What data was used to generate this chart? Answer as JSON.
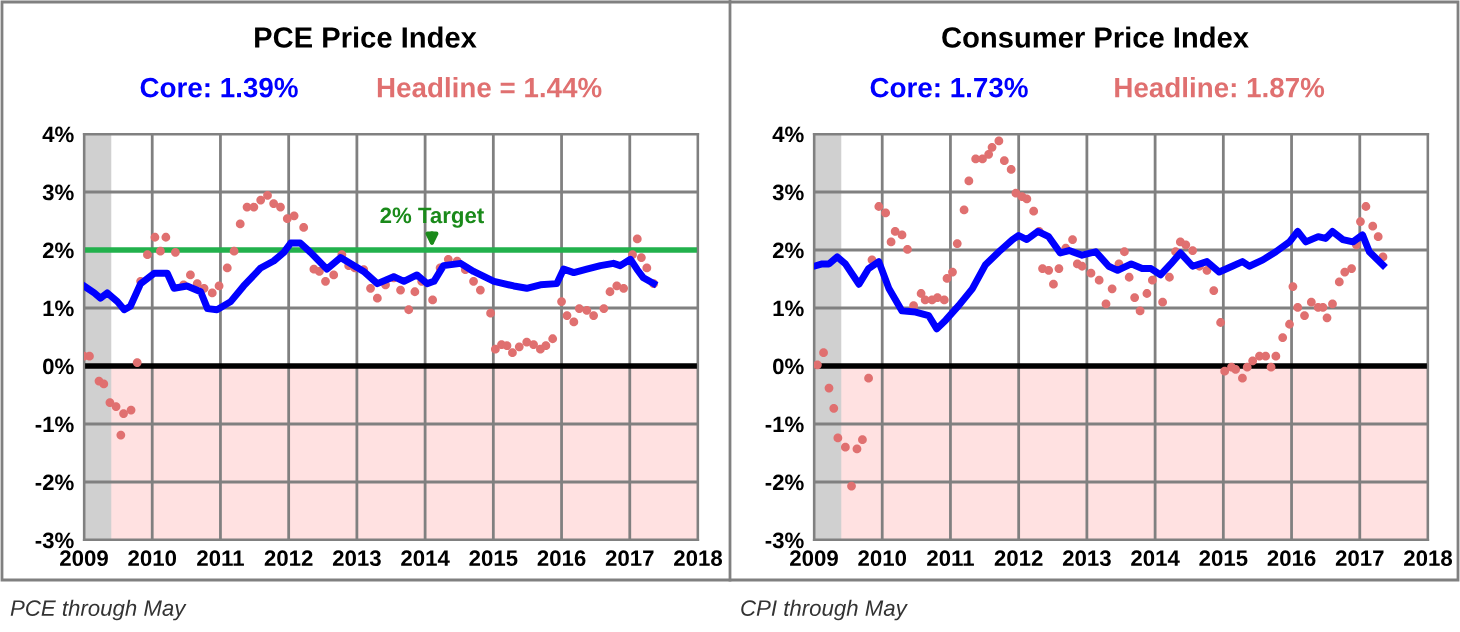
{
  "chart_data": [
    {
      "type": "line",
      "title": "PCE Price Index",
      "xlim": [
        2009,
        2018
      ],
      "ylim": [
        -3,
        4
      ],
      "xticks": [
        2009,
        2010,
        2011,
        2012,
        2013,
        2014,
        2015,
        2016,
        2017,
        2018
      ],
      "yticks": [
        {
          "value": -3,
          "label": "-3%"
        },
        {
          "value": -2,
          "label": "-2%"
        },
        {
          "value": -1,
          "label": "-1%"
        },
        {
          "value": 0,
          "label": "0%"
        },
        {
          "value": 1,
          "label": "1%"
        },
        {
          "value": 2,
          "label": "2%"
        },
        {
          "value": 3,
          "label": "3%"
        },
        {
          "value": 4,
          "label": "4%"
        }
      ],
      "grid": true,
      "series": [
        {
          "name": "Headline = 1.44%",
          "type": "scatter",
          "color": "#e07070",
          "x": [
            2009.0,
            2009.08,
            2009.22,
            2009.29,
            2009.38,
            2009.47,
            2009.54,
            2009.58,
            2009.69,
            2009.78,
            2009.83,
            2009.93,
            2010.04,
            2010.12,
            2010.2,
            2010.34,
            2010.46,
            2010.56,
            2010.66,
            2010.76,
            2010.88,
            2010.98,
            2011.1,
            2011.2,
            2011.29,
            2011.39,
            2011.49,
            2011.59,
            2011.69,
            2011.78,
            2011.88,
            2011.98,
            2012.08,
            2012.22,
            2012.37,
            2012.45,
            2012.54,
            2012.66,
            2012.78,
            2012.88,
            2012.97,
            2013.1,
            2013.2,
            2013.3,
            2013.42,
            2013.54,
            2013.64,
            2013.76,
            2013.85,
            2013.95,
            2014.11,
            2014.22,
            2014.34,
            2014.47,
            2014.59,
            2014.71,
            2014.81,
            2014.96,
            2015.03,
            2015.12,
            2015.2,
            2015.28,
            2015.38,
            2015.49,
            2015.59,
            2015.69,
            2015.77,
            2015.87,
            2016.0,
            2016.08,
            2016.18,
            2016.26,
            2016.37,
            2016.47,
            2016.62,
            2016.71,
            2016.81,
            2016.91,
            2017.04,
            2017.11,
            2017.17,
            2017.25,
            2017.35
          ],
          "values": [
            0.17,
            0.17,
            -0.26,
            -0.31,
            -0.63,
            -0.7,
            -1.19,
            -0.82,
            -0.76,
            0.06,
            1.46,
            1.92,
            2.22,
            1.98,
            2.22,
            1.96,
            1.4,
            1.57,
            1.42,
            1.34,
            1.26,
            1.38,
            1.69,
            1.98,
            2.45,
            2.74,
            2.74,
            2.86,
            2.94,
            2.8,
            2.74,
            2.54,
            2.59,
            2.39,
            1.67,
            1.63,
            1.46,
            1.57,
            1.92,
            1.73,
            1.69,
            1.66,
            1.34,
            1.17,
            1.4,
            1.52,
            1.31,
            0.97,
            1.28,
            1.46,
            1.14,
            1.69,
            1.84,
            1.81,
            1.66,
            1.46,
            1.31,
            0.91,
            0.29,
            0.37,
            0.35,
            0.23,
            0.33,
            0.41,
            0.37,
            0.29,
            0.35,
            0.47,
            1.11,
            0.87,
            0.76,
            0.99,
            0.96,
            0.87,
            0.99,
            1.28,
            1.38,
            1.34,
            1.92,
            2.19,
            1.87,
            1.69,
            1.42
          ]
        },
        {
          "name": "Core: 1.39%",
          "color": "#0000ff",
          "x": [
            2009.0,
            2009.15,
            2009.24,
            2009.34,
            2009.49,
            2009.59,
            2009.68,
            2009.83,
            2010.03,
            2010.22,
            2010.32,
            2010.51,
            2010.71,
            2010.81,
            2010.95,
            2011.15,
            2011.34,
            2011.59,
            2011.78,
            2011.93,
            2012.03,
            2012.17,
            2012.32,
            2012.56,
            2012.76,
            2012.96,
            2013.1,
            2013.3,
            2013.54,
            2013.69,
            2013.88,
            2014.03,
            2014.13,
            2014.27,
            2014.52,
            2014.71,
            2015.01,
            2015.3,
            2015.49,
            2015.69,
            2015.93,
            2016.03,
            2016.18,
            2016.37,
            2016.57,
            2016.76,
            2016.86,
            2017.01,
            2017.11,
            2017.2,
            2017.35
          ],
          "values": [
            1.38,
            1.26,
            1.17,
            1.26,
            1.11,
            0.97,
            1.03,
            1.42,
            1.6,
            1.6,
            1.34,
            1.38,
            1.28,
            0.99,
            0.97,
            1.11,
            1.38,
            1.69,
            1.81,
            1.96,
            2.12,
            2.12,
            1.96,
            1.67,
            1.87,
            1.73,
            1.63,
            1.42,
            1.54,
            1.46,
            1.57,
            1.42,
            1.46,
            1.73,
            1.77,
            1.63,
            1.46,
            1.38,
            1.34,
            1.4,
            1.42,
            1.67,
            1.61,
            1.67,
            1.73,
            1.77,
            1.73,
            1.84,
            1.66,
            1.52,
            1.42
          ]
        }
      ],
      "bands": [
        {
          "axis": "x",
          "from": 2009.0,
          "to": 2009.4,
          "color": "#d0d0d0"
        },
        {
          "axis": "y",
          "from": -3,
          "to": 0,
          "color": "#ffe1e1"
        }
      ],
      "ref_lines": [
        {
          "axis": "y",
          "value": 0,
          "color": "#000000"
        },
        {
          "axis": "y",
          "value": 2,
          "color": "#22b14c"
        }
      ],
      "annotations": [
        {
          "text": "2% Target",
          "x": 2014.1,
          "y": 2
        },
        "PCE through May"
      ]
    },
    {
      "type": "line",
      "title": "Consumer Price Index",
      "xlim": [
        2009,
        2018
      ],
      "ylim": [
        -3,
        4
      ],
      "xticks": [
        2009,
        2010,
        2011,
        2012,
        2013,
        2014,
        2015,
        2016,
        2017,
        2018
      ],
      "yticks": [
        {
          "value": -3,
          "label": "-3%"
        },
        {
          "value": -2,
          "label": "-2%"
        },
        {
          "value": -1,
          "label": "-1%"
        },
        {
          "value": 0,
          "label": "0%"
        },
        {
          "value": 1,
          "label": "1%"
        },
        {
          "value": 2,
          "label": "2%"
        },
        {
          "value": 3,
          "label": "3%"
        },
        {
          "value": 4,
          "label": "4%"
        }
      ],
      "grid": true,
      "series": [
        {
          "name": "Headline: 1.87%",
          "type": "scatter",
          "color": "#e07070",
          "x": [
            2009.05,
            2009.14,
            2009.22,
            2009.29,
            2009.35,
            2009.46,
            2009.55,
            2009.63,
            2009.71,
            2009.8,
            2009.85,
            2009.95,
            2010.05,
            2010.13,
            2010.19,
            2010.29,
            2010.37,
            2010.46,
            2010.57,
            2010.63,
            2010.73,
            2010.81,
            2010.91,
            2010.95,
            2011.03,
            2011.1,
            2011.2,
            2011.27,
            2011.37,
            2011.47,
            2011.56,
            2011.61,
            2011.71,
            2011.79,
            2011.89,
            2011.96,
            2012.05,
            2012.12,
            2012.22,
            2012.3,
            2012.35,
            2012.44,
            2012.51,
            2012.59,
            2012.69,
            2012.79,
            2012.86,
            2012.93,
            2013.06,
            2013.18,
            2013.28,
            2013.37,
            2013.47,
            2013.55,
            2013.62,
            2013.7,
            2013.78,
            2013.88,
            2013.96,
            2014.11,
            2014.21,
            2014.3,
            2014.37,
            2014.45,
            2014.55,
            2014.65,
            2014.76,
            2014.86,
            2014.96,
            2015.02,
            2015.12,
            2015.18,
            2015.28,
            2015.35,
            2015.43,
            2015.53,
            2015.62,
            2015.7,
            2015.77,
            2015.87,
            2015.97,
            2016.02,
            2016.09,
            2016.19,
            2016.29,
            2016.39,
            2016.46,
            2016.52,
            2016.6,
            2016.7,
            2016.78,
            2016.88,
            2016.95,
            2017.01,
            2017.09,
            2017.19,
            2017.27,
            2017.34
          ],
          "values": [
            0.02,
            0.23,
            -0.38,
            -0.73,
            -1.24,
            -1.4,
            -2.07,
            -1.43,
            -1.27,
            -0.21,
            1.83,
            2.75,
            2.64,
            2.14,
            2.32,
            2.26,
            2.01,
            1.04,
            1.25,
            1.14,
            1.14,
            1.18,
            1.14,
            1.51,
            1.62,
            2.11,
            2.69,
            3.19,
            3.57,
            3.57,
            3.65,
            3.77,
            3.88,
            3.54,
            3.39,
            2.98,
            2.92,
            2.88,
            2.67,
            2.32,
            1.68,
            1.65,
            1.41,
            1.68,
            2.03,
            2.18,
            1.76,
            1.72,
            1.6,
            1.48,
            1.07,
            1.33,
            1.76,
            1.97,
            1.53,
            1.18,
            0.95,
            1.25,
            1.48,
            1.1,
            1.53,
            1.97,
            2.14,
            2.09,
            1.99,
            1.72,
            1.65,
            1.3,
            0.75,
            -0.09,
            -0.02,
            -0.06,
            -0.21,
            -0.02,
            0.09,
            0.17,
            0.17,
            -0.02,
            0.17,
            0.49,
            0.72,
            1.37,
            1.01,
            0.87,
            1.1,
            1.01,
            1.01,
            0.83,
            1.07,
            1.45,
            1.62,
            1.68,
            2.09,
            2.49,
            2.75,
            2.41,
            2.23,
            1.88
          ]
        },
        {
          "name": "Core: 1.73%",
          "color": "#0000ff",
          "x": [
            2009.0,
            2009.12,
            2009.22,
            2009.34,
            2009.46,
            2009.66,
            2009.8,
            2009.95,
            2010.1,
            2010.29,
            2010.49,
            2010.68,
            2010.8,
            2010.93,
            2011.12,
            2011.32,
            2011.51,
            2011.71,
            2011.91,
            2012.0,
            2012.12,
            2012.28,
            2012.44,
            2012.61,
            2012.74,
            2012.93,
            2013.13,
            2013.32,
            2013.45,
            2013.65,
            2013.81,
            2013.94,
            2014.08,
            2014.23,
            2014.37,
            2014.55,
            2014.76,
            2014.94,
            2015.13,
            2015.28,
            2015.38,
            2015.58,
            2015.77,
            2015.97,
            2016.09,
            2016.21,
            2016.39,
            2016.5,
            2016.6,
            2016.75,
            2016.9,
            2017.04,
            2017.14,
            2017.34
          ],
          "values": [
            1.72,
            1.76,
            1.76,
            1.88,
            1.76,
            1.41,
            1.68,
            1.8,
            1.33,
            0.95,
            0.93,
            0.87,
            0.64,
            0.79,
            1.04,
            1.33,
            1.74,
            1.97,
            2.18,
            2.25,
            2.18,
            2.32,
            2.23,
            1.95,
            1.99,
            1.91,
            1.97,
            1.72,
            1.65,
            1.76,
            1.68,
            1.68,
            1.57,
            1.76,
            1.95,
            1.72,
            1.8,
            1.62,
            1.72,
            1.8,
            1.72,
            1.83,
            1.97,
            2.14,
            2.32,
            2.14,
            2.23,
            2.2,
            2.32,
            2.18,
            2.14,
            2.26,
            1.97,
            1.74
          ]
        }
      ],
      "bands": [
        {
          "axis": "x",
          "from": 2009.0,
          "to": 2009.4,
          "color": "#d0d0d0"
        },
        {
          "axis": "y",
          "from": -3,
          "to": 0,
          "color": "#ffe1e1"
        }
      ],
      "ref_lines": [
        {
          "axis": "y",
          "value": 0,
          "color": "#000000"
        }
      ],
      "annotations": [
        "CPI through May"
      ]
    }
  ]
}
